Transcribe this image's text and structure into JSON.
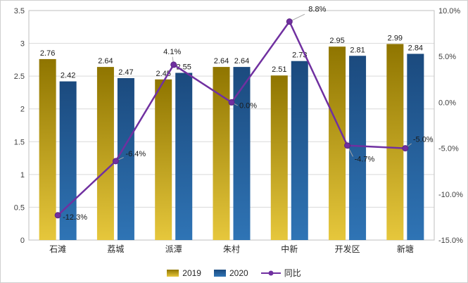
{
  "chart_data": {
    "type": "bar",
    "subtype": "bar+line-combo",
    "categories": [
      "石滩",
      "荔城",
      "派潭",
      "朱村",
      "中新",
      "开发区",
      "新塘"
    ],
    "series": [
      {
        "name": "2019",
        "type": "bar",
        "values": [
          2.76,
          2.64,
          2.45,
          2.64,
          2.51,
          2.95,
          2.99
        ],
        "labels": [
          "2.76",
          "2.64",
          "2.45",
          "2.64",
          "2.51",
          "2.95",
          "2.99"
        ],
        "color_top": "#8f7500",
        "color_bottom": "#e6c73c"
      },
      {
        "name": "2020",
        "type": "bar",
        "values": [
          2.42,
          2.47,
          2.55,
          2.64,
          2.73,
          2.81,
          2.84
        ],
        "labels": [
          "2.42",
          "2.47",
          "2.55",
          "2.64",
          "2.73",
          "2.81",
          "2.84"
        ],
        "color_top": "#1b4a7e",
        "color_bottom": "#2f74b5"
      },
      {
        "name": "同比",
        "type": "line",
        "axis": "right",
        "values": [
          -12.3,
          -6.4,
          4.1,
          0.0,
          8.8,
          -4.7,
          -5.0
        ],
        "labels": [
          "-12.3%",
          "-6.4%",
          "4.1%",
          "0.0%",
          "8.8%",
          "-4.7%",
          "-5.0%"
        ],
        "color": "#7030a0"
      }
    ],
    "left_axis": {
      "min": 0,
      "max": 3.5,
      "ticks": [
        "0",
        "0.5",
        "1",
        "1.5",
        "2",
        "2.5",
        "3",
        "3.5"
      ]
    },
    "right_axis": {
      "min": -15,
      "max": 10,
      "ticks": [
        "-15.0%",
        "-10.0%",
        "-5.0%",
        "0.0%",
        "5.0%",
        "10.0%"
      ]
    },
    "grid": true,
    "legend_position": "bottom",
    "grid_color": "#d9d9d9",
    "border_color": "#bfbfbf",
    "leader_color": "#a6a6a6"
  }
}
